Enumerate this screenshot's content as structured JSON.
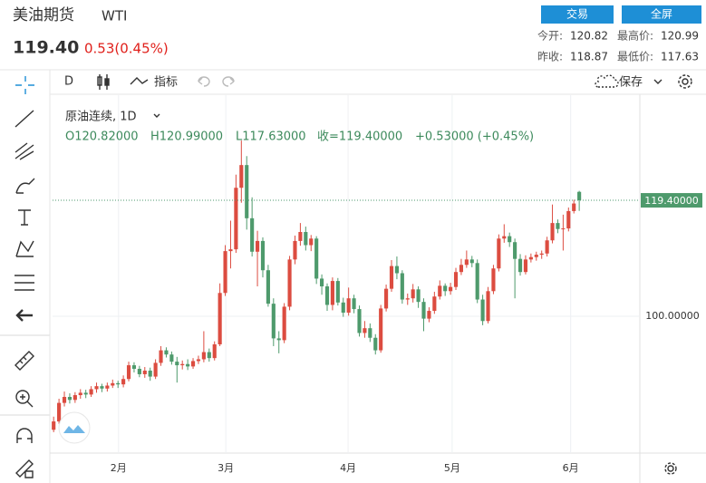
{
  "header": {
    "name": "美油期货",
    "symbol": "WTI",
    "price": "119.40",
    "change": "0.53(0.45%)",
    "buttons": [
      "交易",
      "全屏"
    ],
    "stats": [
      {
        "label": "今开:",
        "value": "120.82"
      },
      {
        "label": "最高价:",
        "value": "120.99"
      },
      {
        "label": "昨收:",
        "value": "118.87"
      },
      {
        "label": "最低价:",
        "value": "117.63"
      }
    ]
  },
  "toolbar": {
    "interval": "D",
    "indicators": "指标",
    "save": "保存"
  },
  "chart_data": {
    "type": "candlestick",
    "legend_title": "原油连续, 1D",
    "legend_values": [
      "O120.82000",
      "H120.99000",
      "L117.63000",
      "收=119.40000",
      "+0.53000 (+0.45%)"
    ],
    "up_color": "#dc4c40",
    "down_color": "#4e9a6c",
    "grid": true,
    "ylim": [
      77.1,
      137.0
    ],
    "yticks": [
      {
        "value": 100,
        "label": "100.00000"
      }
    ],
    "xlim": [
      -0.2,
      109.3
    ],
    "xticks": [
      {
        "value": 12.1,
        "label": "2月"
      },
      {
        "value": 32.1,
        "label": "3月"
      },
      {
        "value": 54.9,
        "label": "4月"
      },
      {
        "value": 74.3,
        "label": "5月"
      },
      {
        "value": 96.4,
        "label": "6月"
      }
    ],
    "last_price": {
      "value": 119.4,
      "label": "119.40000"
    },
    "open": [
      81.0,
      82.4,
      85.5,
      86.5,
      86.0,
      86.8,
      87.2,
      86.9,
      87.8,
      88.3,
      87.9,
      88.4,
      88.8,
      88.6,
      89.5,
      91.8,
      91.2,
      90.3,
      90.9,
      89.9,
      92.2,
      94.3,
      93.6,
      92.4,
      91.8,
      92.0,
      91.6,
      92.5,
      92.8,
      94.0,
      93.0,
      95.3,
      103.9,
      110.9,
      111.2,
      121.5,
      125.3,
      116.4,
      110.8,
      112.6,
      107.7,
      102.1,
      96.3,
      96.0,
      101.6,
      109.5,
      112.6,
      114.1,
      111.9,
      113.0,
      106.3,
      105.0,
      101.9,
      105.9,
      102.3,
      100.6,
      103.0,
      101.2,
      97.2,
      98.0,
      96.4,
      94.3,
      101.3,
      104.6,
      108.4,
      107.2,
      102.8,
      103.0,
      104.5,
      102.4,
      99.6,
      100.9,
      103.3,
      105.1,
      104.2,
      104.9,
      107.4,
      108.6,
      109.5,
      108.9,
      102.8,
      99.2,
      104.2,
      108.0,
      113.0,
      113.4,
      112.4,
      109.6,
      107.4,
      109.5,
      109.9,
      110.3,
      110.5,
      112.7,
      115.6,
      114.6,
      114.7,
      117.6,
      120.82
    ],
    "high": [
      83.2,
      86.2,
      87.4,
      87.1,
      87.3,
      87.8,
      87.7,
      88.3,
      88.9,
      88.7,
      88.9,
      89.4,
      89.2,
      90.1,
      92.4,
      92.3,
      91.7,
      91.5,
      91.4,
      92.8,
      95.0,
      94.8,
      94.1,
      93.2,
      92.6,
      92.8,
      93.0,
      93.4,
      97.5,
      94.6,
      95.8,
      105.5,
      111.9,
      116.0,
      123.7,
      129.4,
      126.8,
      119.9,
      114.3,
      113.2,
      108.6,
      103.0,
      97.5,
      102.2,
      110.1,
      113.5,
      115.6,
      115.0,
      113.6,
      113.4,
      107.0,
      105.5,
      106.5,
      106.4,
      103.1,
      104.8,
      103.6,
      101.8,
      99.2,
      98.8,
      97.0,
      101.9,
      105.3,
      109.4,
      110.0,
      107.7,
      103.8,
      105.4,
      105.0,
      103.0,
      101.5,
      104.1,
      106.0,
      105.5,
      105.6,
      108.1,
      109.6,
      111.0,
      110.1,
      109.5,
      103.6,
      104.9,
      108.6,
      113.7,
      115.4,
      114.0,
      113.0,
      110.4,
      110.2,
      110.5,
      110.8,
      111.0,
      113.3,
      118.7,
      116.2,
      117.0,
      118.2,
      119.5,
      120.99
    ],
    "low": [
      80.6,
      82.0,
      84.9,
      85.4,
      85.5,
      86.2,
      86.3,
      86.5,
      87.2,
      87.3,
      87.4,
      88.0,
      88.0,
      88.1,
      89.1,
      90.6,
      89.8,
      89.7,
      89.2,
      89.5,
      91.7,
      93.1,
      91.9,
      88.9,
      91.1,
      91.0,
      91.2,
      92.0,
      92.3,
      92.4,
      92.6,
      95.0,
      103.4,
      108.0,
      110.6,
      119.0,
      114.5,
      110.0,
      105.0,
      106.5,
      101.6,
      95.0,
      93.8,
      95.5,
      101.0,
      108.7,
      111.8,
      111.0,
      110.9,
      105.4,
      103.6,
      100.9,
      101.0,
      101.8,
      99.9,
      100.1,
      100.5,
      96.6,
      96.4,
      95.7,
      93.6,
      93.9,
      100.8,
      104.1,
      106.2,
      102.1,
      101.9,
      102.3,
      101.4,
      97.5,
      99.0,
      100.4,
      102.8,
      103.4,
      103.6,
      104.4,
      106.9,
      108.1,
      108.2,
      102.2,
      98.5,
      98.8,
      103.7,
      107.5,
      112.3,
      111.6,
      103.0,
      106.8,
      107.0,
      109.0,
      109.3,
      109.6,
      110.0,
      112.2,
      113.9,
      111.0,
      114.2,
      117.2,
      117.63
    ],
    "close": [
      82.4,
      85.5,
      86.5,
      86.0,
      86.8,
      87.2,
      86.9,
      87.8,
      88.3,
      87.9,
      88.4,
      88.8,
      88.6,
      89.5,
      91.8,
      91.2,
      90.3,
      90.9,
      89.9,
      92.2,
      94.3,
      93.6,
      92.4,
      91.8,
      92.0,
      91.6,
      92.5,
      92.8,
      94.0,
      93.0,
      95.3,
      103.9,
      110.9,
      111.2,
      121.5,
      125.3,
      116.4,
      110.8,
      112.6,
      107.7,
      102.1,
      96.3,
      96.0,
      101.6,
      109.5,
      112.6,
      114.1,
      111.9,
      113.0,
      106.3,
      105.0,
      101.9,
      105.9,
      102.3,
      100.6,
      103.0,
      101.2,
      97.2,
      98.0,
      96.4,
      94.3,
      101.3,
      104.6,
      108.4,
      107.2,
      102.8,
      103.0,
      104.5,
      102.4,
      99.6,
      100.9,
      103.3,
      105.1,
      104.2,
      104.9,
      107.4,
      108.6,
      109.5,
      108.9,
      102.8,
      99.2,
      104.2,
      108.0,
      113.0,
      113.4,
      112.4,
      109.6,
      107.4,
      109.5,
      109.9,
      110.3,
      110.5,
      112.7,
      115.6,
      114.6,
      114.7,
      117.6,
      118.87,
      119.4
    ]
  }
}
